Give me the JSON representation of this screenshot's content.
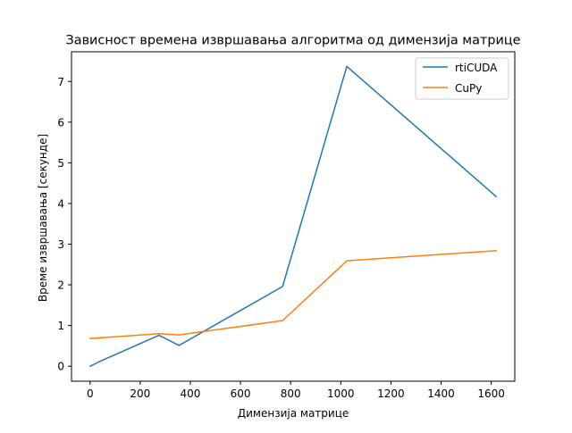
{
  "chart_data": {
    "type": "line",
    "title": "Зависност времена извршавања алгоритма од димензија матрице",
    "xlabel": "Димензија матрице",
    "ylabel": "Време извршавања [секунде]",
    "xlim": [
      -74,
      1694
    ],
    "ylim": [
      -0.37,
      7.73
    ],
    "xticks": [
      0,
      200,
      400,
      600,
      800,
      1000,
      1200,
      1400,
      1600
    ],
    "yticks": [
      0,
      1,
      2,
      3,
      4,
      5,
      6,
      7
    ],
    "grid": false,
    "legend_position": "top-right",
    "series": [
      {
        "name": "rtiCUDA",
        "color": "#1f77b4",
        "x": [
          1,
          40,
          275,
          355,
          768,
          1024,
          1620
        ],
        "y": [
          0.0,
          0.12,
          0.76,
          0.51,
          1.96,
          7.37,
          4.17
        ]
      },
      {
        "name": "CuPy",
        "color": "#ff7f0e",
        "x": [
          1,
          275,
          355,
          768,
          1024,
          1620
        ],
        "y": [
          0.68,
          0.8,
          0.77,
          1.12,
          2.59,
          2.84
        ]
      }
    ]
  }
}
